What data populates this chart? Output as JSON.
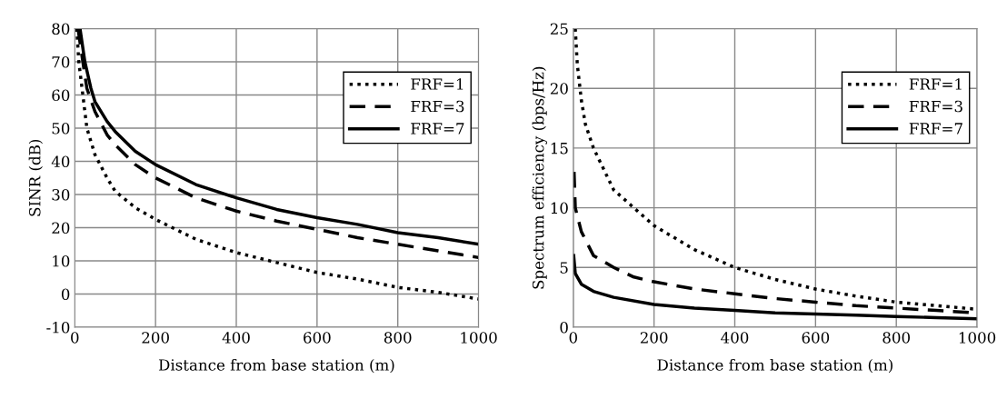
{
  "chart_data": [
    {
      "type": "line",
      "xlabel": "Distance from base station (m)",
      "ylabel": "SINR (dB)",
      "xlim": [
        0,
        1000
      ],
      "xticks": [
        0,
        200,
        400,
        600,
        800,
        1000
      ],
      "ylim": [
        -10,
        80
      ],
      "yticks": [
        {
          "value": -10,
          "label": "-10"
        },
        0,
        10,
        20,
        30,
        40,
        50,
        60,
        70,
        80
      ],
      "grid": true,
      "legend": "top right",
      "marker": "none",
      "series": [
        {
          "name": "FRF=1",
          "color": "#000000",
          "line_style": "dotted",
          "x": [
            5,
            10,
            20,
            30,
            50,
            80,
            100,
            150,
            200,
            250,
            300,
            400,
            500,
            600,
            700,
            800,
            900,
            1000
          ],
          "values": [
            80,
            70,
            60,
            50,
            42,
            35,
            31,
            26,
            22.5,
            19.5,
            16.5,
            12.5,
            9.5,
            6.5,
            4.5,
            2,
            0.5,
            -1.5
          ]
        },
        {
          "name": "FRF=3",
          "color": "#000000",
          "line_style": "dashed",
          "x": [
            8,
            20,
            30,
            50,
            80,
            100,
            150,
            200,
            300,
            400,
            500,
            600,
            700,
            800,
            900,
            1000
          ],
          "values": [
            80,
            70,
            62,
            55,
            48,
            45,
            39,
            35,
            29,
            25,
            22,
            19.5,
            17,
            15,
            13,
            11
          ]
        },
        {
          "name": "FRF=7",
          "color": "#000000",
          "line_style": "solid",
          "x": [
            13,
            25,
            40,
            50,
            80,
            100,
            150,
            200,
            300,
            400,
            500,
            600,
            700,
            800,
            900,
            1000
          ],
          "values": [
            80,
            70,
            62,
            58,
            52,
            49,
            43,
            39,
            33,
            29,
            25.5,
            23,
            21,
            18.5,
            17,
            15
          ]
        }
      ]
    },
    {
      "type": "line",
      "xlabel": "Distance from base station (m)",
      "ylabel": "Spectrum efficiency (bps/Hz)",
      "xlim": [
        0,
        1000
      ],
      "xticks": [
        0,
        200,
        400,
        600,
        800,
        1000
      ],
      "ylim": [
        0,
        25
      ],
      "yticks": [
        0,
        5,
        10,
        15,
        20,
        25
      ],
      "grid": true,
      "legend": "top right",
      "marker": "none",
      "series": [
        {
          "name": "FRF=1",
          "color": "#000000",
          "line_style": "dotted",
          "x": [
            5,
            10,
            20,
            30,
            50,
            100,
            150,
            200,
            300,
            400,
            500,
            600,
            700,
            800,
            900,
            1000
          ],
          "values": [
            25,
            22,
            19,
            17,
            15,
            11.5,
            10,
            8.5,
            6.5,
            5,
            4,
            3.2,
            2.6,
            2.1,
            1.8,
            1.5
          ]
        },
        {
          "name": "FRF=3",
          "color": "#000000",
          "line_style": "dashed",
          "x": [
            2,
            5,
            20,
            50,
            100,
            150,
            200,
            300,
            400,
            500,
            600,
            700,
            800,
            900,
            1000
          ],
          "values": [
            13,
            10,
            8,
            6,
            5,
            4.2,
            3.8,
            3.2,
            2.8,
            2.4,
            2.1,
            1.8,
            1.6,
            1.4,
            1.2
          ]
        },
        {
          "name": "FRF=7",
          "color": "#000000",
          "line_style": "solid",
          "x": [
            1,
            5,
            20,
            50,
            100,
            200,
            300,
            400,
            500,
            600,
            700,
            800,
            900,
            1000
          ],
          "values": [
            6,
            4.5,
            3.6,
            3,
            2.5,
            1.9,
            1.6,
            1.4,
            1.2,
            1.1,
            1.0,
            0.9,
            0.8,
            0.7
          ]
        }
      ]
    }
  ]
}
